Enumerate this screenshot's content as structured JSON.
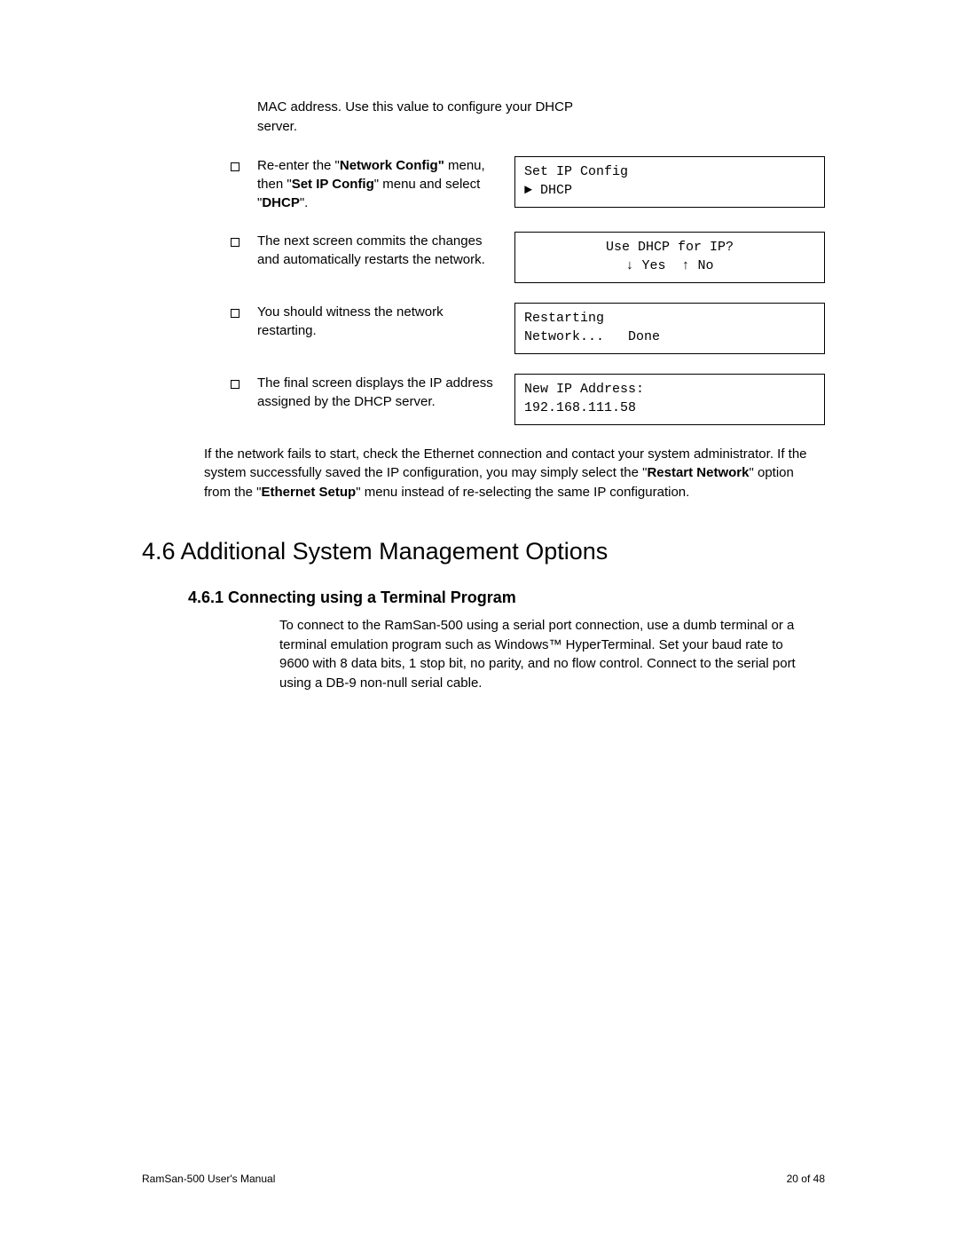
{
  "intro": "MAC address.  Use this value to configure your DHCP server.",
  "steps": [
    {
      "text_parts": [
        "Re-enter the \"",
        {
          "b": "Network Config\""
        },
        " menu, then \"",
        {
          "b": "Set IP Config"
        },
        "\" menu and select \"",
        {
          "b": "DHCP"
        },
        "\"."
      ],
      "screen_lines": [
        "Set IP Config",
        "► DHCP"
      ],
      "screen_align": "left"
    },
    {
      "text_parts": [
        "The next screen commits the changes and automatically restarts the network."
      ],
      "screen_lines": [
        "Use DHCP for IP?",
        "↓ Yes  ↑ No"
      ],
      "screen_align": "center"
    },
    {
      "text_parts": [
        "You should witness the network restarting."
      ],
      "screen_lines": [
        "Restarting",
        "Network...   Done"
      ],
      "screen_align": "left"
    },
    {
      "text_parts": [
        "The final screen displays the IP address assigned by the DHCP server."
      ],
      "screen_lines": [
        "New IP Address:",
        "192.168.111.58"
      ],
      "screen_align": "left"
    }
  ],
  "after_steps_parts": [
    "If the network fails to start, check the Ethernet connection and contact your system administrator. If the system successfully saved the IP configuration, you may simply select the \"",
    {
      "b": "Restart Network"
    },
    "\" option from the \"",
    {
      "b": "Ethernet Setup"
    },
    "\" menu instead of re-selecting the same IP configuration."
  ],
  "h2": "4.6 Additional System Management Options",
  "h3": "4.6.1 Connecting using a Terminal Program",
  "body_para": "To connect to the RamSan-500 using a serial port connection, use a dumb terminal or a terminal emulation program such as Windows™ HyperTerminal. Set your baud rate to 9600 with 8 data bits, 1 stop bit, no parity, and no flow control. Connect to the serial port using a DB-9 non-null serial cable.",
  "footer_left": "RamSan-500 User's Manual",
  "footer_right": "20 of 48",
  "colors": {
    "text": "#000000",
    "bg": "#ffffff",
    "border": "#000000"
  }
}
